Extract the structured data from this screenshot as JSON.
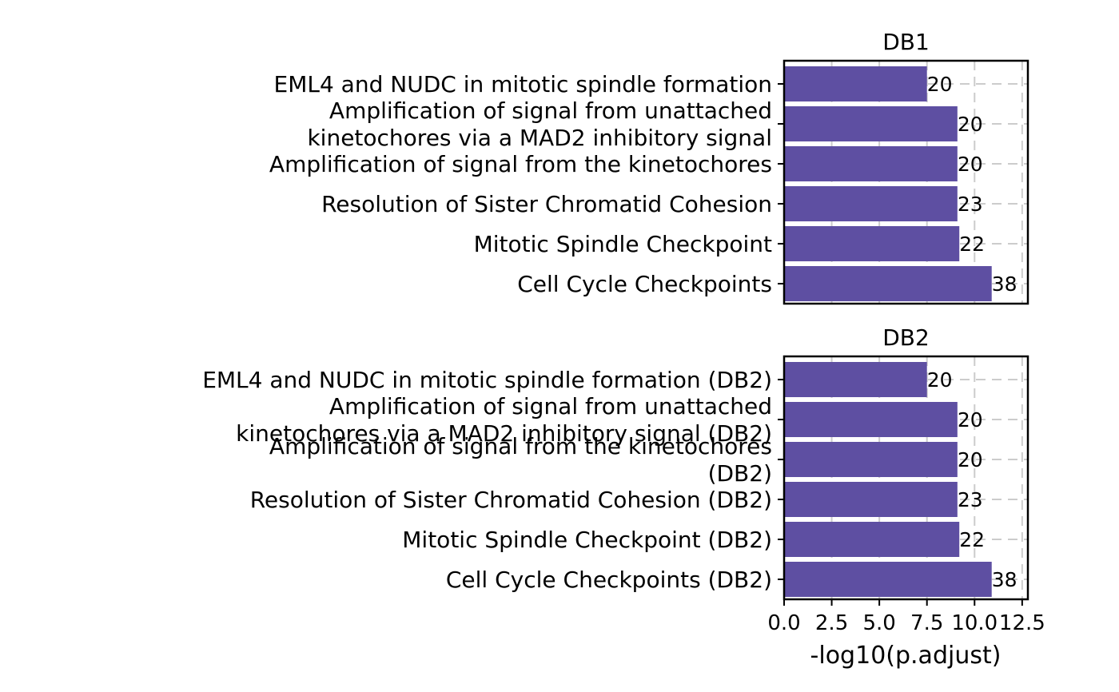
{
  "chart_data": {
    "type": "bar",
    "orientation": "horizontal",
    "xlabel": "-log10(p.adjust)",
    "xlim": [
      0,
      12.8
    ],
    "xticks": [
      0.0,
      2.5,
      5.0,
      7.5,
      10.0,
      12.5
    ],
    "xtick_labels": [
      "0.0",
      "2.5",
      "5.0",
      "7.5",
      "10.0",
      "12.5"
    ],
    "bar_color": "#5e4fa2",
    "grid": true,
    "panels": [
      {
        "title": "DB1",
        "bars": [
          {
            "label": "EML4 and NUDC in mitotic spindle formation",
            "value": 7.5,
            "count": "20"
          },
          {
            "label": "Amplification of signal from unattached\nkinetochores via a MAD2 inhibitory signal",
            "value": 9.1,
            "count": "20"
          },
          {
            "label": "Amplification of signal from the kinetochores",
            "value": 9.1,
            "count": "20"
          },
          {
            "label": "Resolution of Sister Chromatid Cohesion",
            "value": 9.1,
            "count": "23"
          },
          {
            "label": "Mitotic Spindle Checkpoint",
            "value": 9.2,
            "count": "22"
          },
          {
            "label": "Cell Cycle Checkpoints",
            "value": 10.9,
            "count": "38"
          }
        ]
      },
      {
        "title": "DB2",
        "bars": [
          {
            "label": "EML4 and NUDC in mitotic spindle formation (DB2)",
            "value": 7.5,
            "count": "20"
          },
          {
            "label": "Amplification of signal from unattached\nkinetochores via a MAD2 inhibitory signal (DB2)",
            "value": 9.1,
            "count": "20"
          },
          {
            "label": "Amplification of signal from the kinetochores\n(DB2)",
            "value": 9.1,
            "count": "20"
          },
          {
            "label": "Resolution of Sister Chromatid Cohesion (DB2)",
            "value": 9.1,
            "count": "23"
          },
          {
            "label": "Mitotic Spindle Checkpoint (DB2)",
            "value": 9.2,
            "count": "22"
          },
          {
            "label": "Cell Cycle Checkpoints (DB2)",
            "value": 10.9,
            "count": "38"
          }
        ]
      }
    ]
  }
}
